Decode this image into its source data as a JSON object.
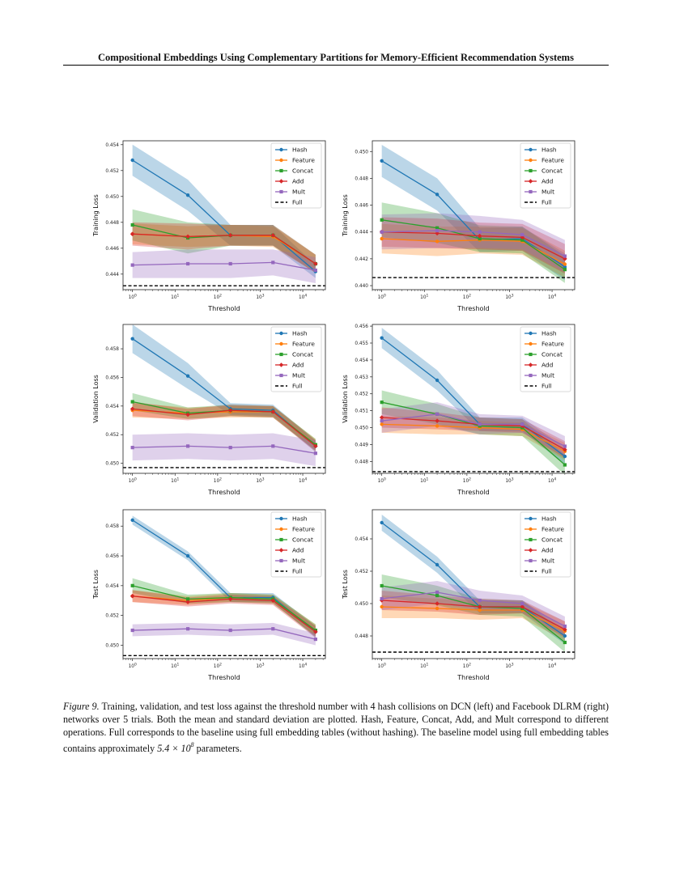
{
  "page": {
    "header": "Compositional Embeddings Using Complementary Partitions for Memory-Efficient Recommendation Systems"
  },
  "caption": {
    "label": "Figure 9.",
    "text_1": " Training, validation, and test loss against the threshold number with 4 hash collisions on DCN (left) and Facebook DLRM (right) networks over 5 trials. Both the mean and standard deviation are plotted. Hash, Feature, Concat, Add, and Mult correspond to different operations. Full corresponds to the baseline using full embedding tables (without hashing). The baseline model using full embedding tables contains approximately ",
    "math_base": "5.4 × 10",
    "math_exp": "8",
    "text_2": " parameters."
  },
  "colors": {
    "Hash": "#1f77b4",
    "Feature": "#ff7f0e",
    "Concat": "#2ca02c",
    "Add": "#d62728",
    "Mult": "#9467bd",
    "Full": "#000000"
  },
  "chart_data": [
    {
      "type": "line",
      "title": "",
      "xlabel": "Threshold",
      "ylabel": "Training Loss",
      "xscale": "log",
      "x": [
        1,
        20,
        200,
        2000,
        20000
      ],
      "xticks": [
        "10^0",
        "10^1",
        "10^2",
        "10^3",
        "10^4"
      ],
      "ylim": [
        0.4428,
        0.4543
      ],
      "yticks": [
        "0.444",
        "0.446",
        "0.448",
        "0.450",
        "0.452",
        "0.454"
      ],
      "legend": "top-right",
      "full": 0.4431,
      "series": [
        {
          "name": "Hash",
          "values": [
            0.4528,
            0.4501,
            0.447,
            0.447,
            0.4442
          ],
          "std": [
            0.0012,
            0.0012,
            0.0008,
            0.0008,
            0.0005
          ]
        },
        {
          "name": "Feature",
          "values": [
            0.4471,
            0.4469,
            0.447,
            0.4469,
            0.4448
          ],
          "std": [
            0.0008,
            0.0008,
            0.0008,
            0.0008,
            0.0007
          ]
        },
        {
          "name": "Concat",
          "values": [
            0.4478,
            0.4468,
            0.447,
            0.447,
            0.4448
          ],
          "std": [
            0.0012,
            0.0012,
            0.0008,
            0.0008,
            0.0007
          ]
        },
        {
          "name": "Add",
          "values": [
            0.4471,
            0.4469,
            0.447,
            0.447,
            0.4448
          ],
          "std": [
            0.0009,
            0.001,
            0.0008,
            0.0008,
            0.0007
          ]
        },
        {
          "name": "Mult",
          "values": [
            0.4447,
            0.4448,
            0.4448,
            0.4449,
            0.4443
          ],
          "std": [
            0.001,
            0.0011,
            0.0011,
            0.001,
            0.001
          ]
        }
      ]
    },
    {
      "type": "line",
      "title": "",
      "xlabel": "Threshold",
      "ylabel": "Training Loss",
      "xscale": "log",
      "x": [
        1,
        20,
        200,
        2000,
        20000
      ],
      "xticks": [
        "10^0",
        "10^1",
        "10^2",
        "10^3",
        "10^4"
      ],
      "ylim": [
        0.4397,
        0.4508
      ],
      "yticks": [
        "0.440",
        "0.442",
        "0.444",
        "0.446",
        "0.448",
        "0.450"
      ],
      "legend": "top-right",
      "full": 0.4406,
      "series": [
        {
          "name": "Hash",
          "values": [
            0.4493,
            0.4468,
            0.4434,
            0.4435,
            0.4414
          ],
          "std": [
            0.0012,
            0.0012,
            0.0009,
            0.0009,
            0.001
          ]
        },
        {
          "name": "Feature",
          "values": [
            0.4435,
            0.4433,
            0.4434,
            0.4433,
            0.4416
          ],
          "std": [
            0.0011,
            0.0011,
            0.001,
            0.001,
            0.001
          ]
        },
        {
          "name": "Concat",
          "values": [
            0.4449,
            0.4443,
            0.4435,
            0.4434,
            0.4412
          ],
          "std": [
            0.0013,
            0.0011,
            0.001,
            0.001,
            0.001
          ]
        },
        {
          "name": "Add",
          "values": [
            0.444,
            0.4439,
            0.4437,
            0.4436,
            0.442
          ],
          "std": [
            0.0011,
            0.0011,
            0.001,
            0.001,
            0.0011
          ]
        },
        {
          "name": "Mult",
          "values": [
            0.444,
            0.4441,
            0.444,
            0.4438,
            0.4422
          ],
          "std": [
            0.0013,
            0.0013,
            0.0012,
            0.0011,
            0.0012
          ]
        }
      ]
    },
    {
      "type": "line",
      "title": "",
      "xlabel": "Threshold",
      "ylabel": "Validation Loss",
      "xscale": "log",
      "x": [
        1,
        20,
        200,
        2000,
        20000
      ],
      "xticks": [
        "10^0",
        "10^1",
        "10^2",
        "10^3",
        "10^4"
      ],
      "ylim": [
        0.4493,
        0.4597
      ],
      "yticks": [
        "0.450",
        "0.452",
        "0.454",
        "0.456",
        "0.458"
      ],
      "legend": "top-right",
      "full": 0.4497,
      "series": [
        {
          "name": "Hash",
          "values": [
            0.4587,
            0.4561,
            0.4538,
            0.4537,
            0.4512
          ],
          "std": [
            0.001,
            0.0009,
            0.0004,
            0.0004,
            0.0004
          ]
        },
        {
          "name": "Feature",
          "values": [
            0.4537,
            0.4535,
            0.4536,
            0.4536,
            0.4513
          ],
          "std": [
            0.0005,
            0.0004,
            0.0004,
            0.0004,
            0.0004
          ]
        },
        {
          "name": "Concat",
          "values": [
            0.4543,
            0.4535,
            0.4537,
            0.4536,
            0.4513
          ],
          "std": [
            0.0006,
            0.0004,
            0.0004,
            0.0004,
            0.0004
          ]
        },
        {
          "name": "Add",
          "values": [
            0.4538,
            0.4534,
            0.4537,
            0.4536,
            0.4512
          ],
          "std": [
            0.0005,
            0.0004,
            0.0004,
            0.0004,
            0.0004
          ]
        },
        {
          "name": "Mult",
          "values": [
            0.4511,
            0.4512,
            0.4511,
            0.4512,
            0.4507
          ],
          "std": [
            0.0009,
            0.0009,
            0.0009,
            0.0009,
            0.0009
          ]
        }
      ]
    },
    {
      "type": "line",
      "title": "",
      "xlabel": "Threshold",
      "ylabel": "Validation Loss",
      "xscale": "log",
      "x": [
        1,
        20,
        200,
        2000,
        20000
      ],
      "xticks": [
        "10^0",
        "10^1",
        "10^2",
        "10^3",
        "10^4"
      ],
      "ylim": [
        0.4473,
        0.4561
      ],
      "yticks": [
        "0.448",
        "0.449",
        "0.450",
        "0.451",
        "0.452",
        "0.453",
        "0.454",
        "0.455",
        "0.456"
      ],
      "legend": "top-right",
      "full": 0.4474,
      "series": [
        {
          "name": "Hash",
          "values": [
            0.4553,
            0.4528,
            0.4502,
            0.4502,
            0.4483
          ],
          "std": [
            0.0006,
            0.0006,
            0.0004,
            0.0004,
            0.0005
          ]
        },
        {
          "name": "Feature",
          "values": [
            0.4502,
            0.4501,
            0.45,
            0.4499,
            0.4486
          ],
          "std": [
            0.0005,
            0.0005,
            0.0004,
            0.0004,
            0.0005
          ]
        },
        {
          "name": "Concat",
          "values": [
            0.4515,
            0.4508,
            0.4501,
            0.45,
            0.4478
          ],
          "std": [
            0.0007,
            0.0006,
            0.0005,
            0.0005,
            0.0006
          ]
        },
        {
          "name": "Add",
          "values": [
            0.4506,
            0.4504,
            0.4502,
            0.4501,
            0.4487
          ],
          "std": [
            0.0006,
            0.0005,
            0.0004,
            0.0004,
            0.0005
          ]
        },
        {
          "name": "Mult",
          "values": [
            0.4504,
            0.4508,
            0.4502,
            0.4502,
            0.4489
          ],
          "std": [
            0.0007,
            0.0007,
            0.0006,
            0.0005,
            0.0006
          ]
        }
      ]
    },
    {
      "type": "line",
      "title": "",
      "xlabel": "Threshold",
      "ylabel": "Test Loss",
      "xscale": "log",
      "x": [
        1,
        20,
        200,
        2000,
        20000
      ],
      "xticks": [
        "10^0",
        "10^1",
        "10^2",
        "10^3",
        "10^4"
      ],
      "ylim": [
        0.4491,
        0.4591
      ],
      "yticks": [
        "0.450",
        "0.452",
        "0.454",
        "0.456",
        "0.458"
      ],
      "legend": "top-right",
      "full": 0.4493,
      "series": [
        {
          "name": "Hash",
          "values": [
            0.4584,
            0.456,
            0.4532,
            0.4532,
            0.4509
          ],
          "std": [
            0.0003,
            0.0003,
            0.0003,
            0.0003,
            0.0004
          ]
        },
        {
          "name": "Feature",
          "values": [
            0.4533,
            0.453,
            0.4532,
            0.4531,
            0.451
          ],
          "std": [
            0.0004,
            0.0003,
            0.0003,
            0.0003,
            0.0004
          ]
        },
        {
          "name": "Concat",
          "values": [
            0.454,
            0.4531,
            0.4532,
            0.4531,
            0.451
          ],
          "std": [
            0.0005,
            0.0003,
            0.0003,
            0.0003,
            0.0004
          ]
        },
        {
          "name": "Add",
          "values": [
            0.4533,
            0.4529,
            0.4531,
            0.453,
            0.4509
          ],
          "std": [
            0.0004,
            0.0003,
            0.0003,
            0.0003,
            0.0004
          ]
        },
        {
          "name": "Mult",
          "values": [
            0.451,
            0.4511,
            0.451,
            0.4511,
            0.4504
          ],
          "std": [
            0.0004,
            0.0004,
            0.0004,
            0.0004,
            0.0004
          ]
        }
      ]
    },
    {
      "type": "line",
      "title": "",
      "xlabel": "Threshold",
      "ylabel": "Test Loss",
      "xscale": "log",
      "x": [
        1,
        20,
        200,
        2000,
        20000
      ],
      "xticks": [
        "10^0",
        "10^1",
        "10^2",
        "10^3",
        "10^4"
      ],
      "ylim": [
        0.4466,
        0.4558
      ],
      "yticks": [
        "0.448",
        "0.450",
        "0.452",
        "0.454"
      ],
      "legend": "top-right",
      "full": 0.447,
      "series": [
        {
          "name": "Hash",
          "values": [
            0.455,
            0.4524,
            0.4498,
            0.4498,
            0.448
          ],
          "std": [
            0.0005,
            0.0005,
            0.0004,
            0.0004,
            0.0005
          ]
        },
        {
          "name": "Feature",
          "values": [
            0.4498,
            0.4497,
            0.4496,
            0.4496,
            0.4483
          ],
          "std": [
            0.0007,
            0.0006,
            0.0006,
            0.0005,
            0.0006
          ]
        },
        {
          "name": "Concat",
          "values": [
            0.4511,
            0.4505,
            0.4498,
            0.4497,
            0.4476
          ],
          "std": [
            0.0007,
            0.0006,
            0.0005,
            0.0005,
            0.0006
          ]
        },
        {
          "name": "Add",
          "values": [
            0.4502,
            0.45,
            0.4498,
            0.4498,
            0.4484
          ],
          "std": [
            0.0006,
            0.0005,
            0.0005,
            0.0004,
            0.0005
          ]
        },
        {
          "name": "Mult",
          "values": [
            0.4503,
            0.4507,
            0.4502,
            0.45,
            0.4486
          ],
          "std": [
            0.0007,
            0.0007,
            0.0006,
            0.0005,
            0.0006
          ]
        }
      ]
    }
  ]
}
